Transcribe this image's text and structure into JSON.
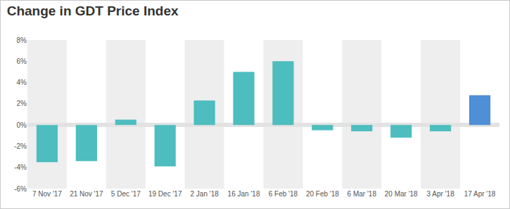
{
  "chart_data": {
    "type": "bar",
    "title": "Change in GDT Price Index",
    "categories": [
      "7 Nov '17",
      "21 Nov '17",
      "5 Dec '17",
      "19 Dec '17",
      "2 Jan '18",
      "16 Jan '18",
      "6 Feb '18",
      "20 Feb '18",
      "6 Mar '18",
      "20 Mar '18",
      "3 Apr '18",
      "17 Apr '18"
    ],
    "values": [
      -3.5,
      -3.4,
      0.5,
      -3.9,
      2.3,
      5.0,
      6.0,
      -0.5,
      -0.6,
      -1.2,
      -0.6,
      2.8
    ],
    "colors": [
      "#4dbdbf",
      "#4dbdbf",
      "#4dbdbf",
      "#4dbdbf",
      "#4dbdbf",
      "#4dbdbf",
      "#4dbdbf",
      "#4dbdbf",
      "#4dbdbf",
      "#4dbdbf",
      "#4dbdbf",
      "#4e8fd6"
    ],
    "ylim": [
      -6,
      8
    ],
    "yticks": [
      {
        "value": -6,
        "label": "-6%"
      },
      {
        "value": -4,
        "label": "-4%"
      },
      {
        "value": -2,
        "label": "-2%"
      },
      {
        "value": 0,
        "label": "0%"
      },
      {
        "value": 2,
        "label": "2%"
      },
      {
        "value": 4,
        "label": "4%"
      },
      {
        "value": 6,
        "label": "6%"
      },
      {
        "value": 8,
        "label": "8%"
      }
    ],
    "grid": false
  }
}
